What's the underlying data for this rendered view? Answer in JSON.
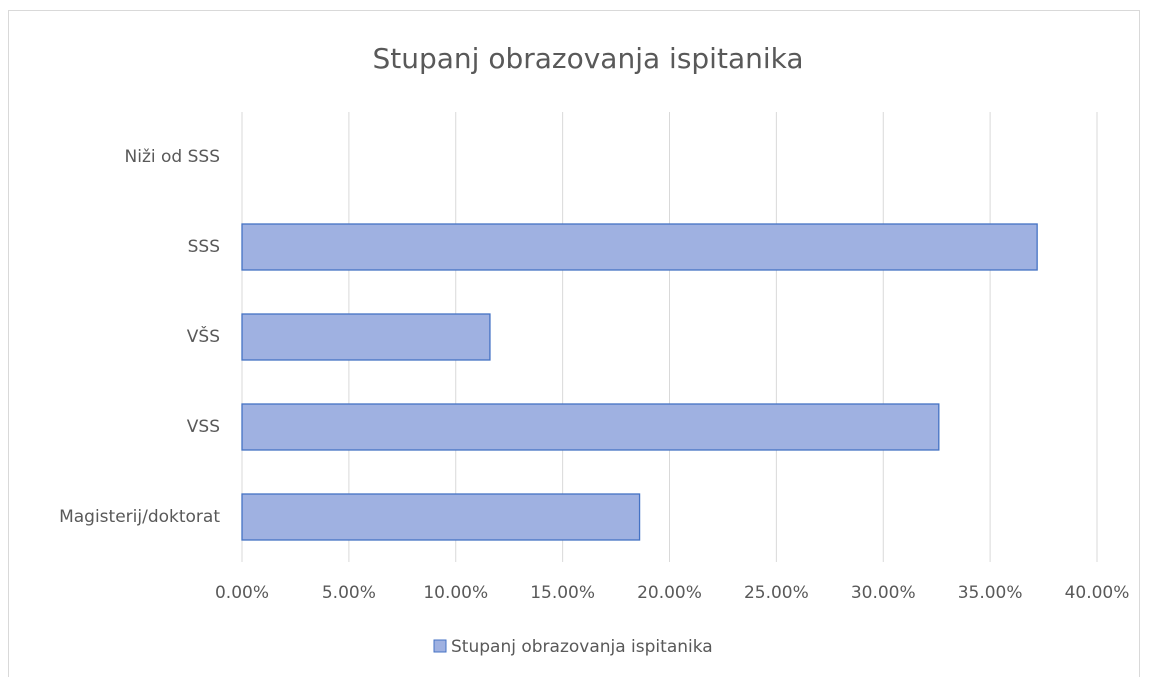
{
  "chart_data": {
    "type": "hbar",
    "title": "Stupanj obrazovanja ispitanika",
    "categories": [
      "Niži od SSS",
      "SSS",
      "VŠS",
      "VSS",
      "Magisterij/doktorat"
    ],
    "series": [
      {
        "name": "Stupanj obrazovanja ispitanika",
        "color": "#9fb1e1",
        "edge_color": "#4472c4",
        "values": [
          0,
          37.2,
          11.6,
          32.6,
          18.6
        ]
      }
    ],
    "xlim": [
      0,
      40
    ],
    "xticks": [
      {
        "value": 0,
        "label": "0.00%"
      },
      {
        "value": 5,
        "label": "5.00%"
      },
      {
        "value": 10,
        "label": "10.00%"
      },
      {
        "value": 15,
        "label": "15.00%"
      },
      {
        "value": 20,
        "label": "20.00%"
      },
      {
        "value": 25,
        "label": "25.00%"
      },
      {
        "value": 30,
        "label": "30.00%"
      },
      {
        "value": 35,
        "label": "35.00%"
      },
      {
        "value": 40,
        "label": "40.00%"
      }
    ],
    "grid": true,
    "legend": "bottom"
  }
}
